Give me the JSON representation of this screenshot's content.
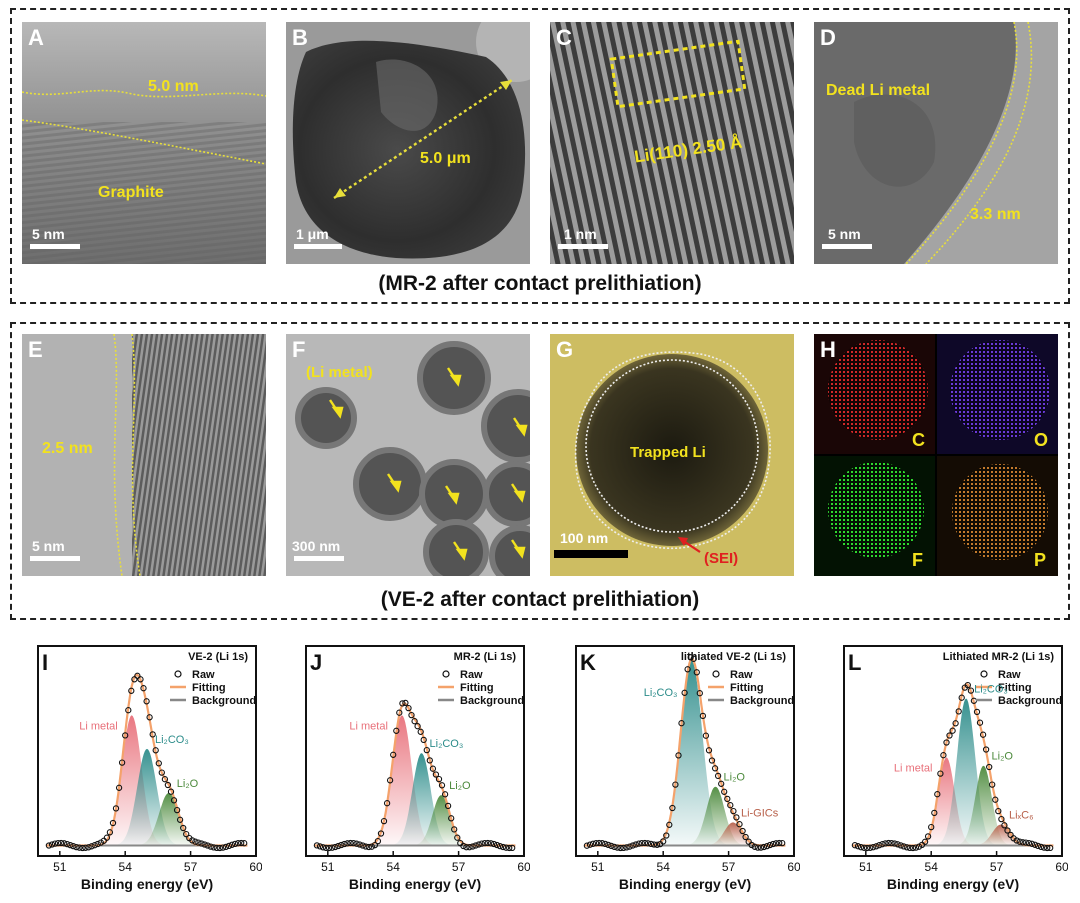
{
  "group_top": {
    "caption": "(MR-2 after contact prelithiation)"
  },
  "group_mid": {
    "caption": "(VE-2 after contact prelithiation)"
  },
  "panels": {
    "A": {
      "label": "A",
      "ann1": "5.0 nm",
      "ann2": "Graphite",
      "scale": "5 nm"
    },
    "B": {
      "label": "B",
      "ann1": "5.0 μm",
      "scale": "1 μm"
    },
    "C": {
      "label": "C",
      "ann1": "Li(110) 2.50 Å",
      "scale": "1 nm"
    },
    "D": {
      "label": "D",
      "ann1": "Dead Li metal",
      "ann2": "3.3 nm",
      "scale": "5 nm"
    },
    "E": {
      "label": "E",
      "ann1": "2.5 nm",
      "scale": "5 nm"
    },
    "F": {
      "label": "F",
      "ann1": "(Li metal)",
      "scale": "300 nm"
    },
    "G": {
      "label": "G",
      "ann1": "Trapped Li",
      "ann2": "(SEI)",
      "scale": "100 nm"
    },
    "H": {
      "label": "H",
      "maps": [
        "C",
        "O",
        "F",
        "P"
      ]
    }
  },
  "colors": {
    "fit": "#f4a26b",
    "li_metal": "#e8707a",
    "li2co3": "#2c8c8a",
    "li2o": "#4c8a3c",
    "lic": "#b8604a",
    "annotation": "#f2e21e"
  },
  "xps_common": {
    "xlabel": "Binding energy (eV)",
    "xticks": [
      "51",
      "54",
      "57",
      "60"
    ],
    "legend": [
      "Raw",
      "Fitting",
      "Background"
    ]
  },
  "chart_data": [
    {
      "type": "line",
      "letter": "I",
      "title": "VE-2 (Li 1s)",
      "xlim": [
        50,
        60
      ],
      "components": [
        {
          "name": "Li metal",
          "center": 54.3,
          "height": 0.62,
          "width": 0.45
        },
        {
          "name": "Li2CO3",
          "center": 55.0,
          "height": 0.46,
          "width": 0.45
        },
        {
          "name": "Li2O",
          "center": 56.0,
          "height": 0.25,
          "width": 0.45
        }
      ],
      "labels": [
        {
          "text": "Li metal",
          "color": "li_metal"
        },
        {
          "text": "Li₂CO₃",
          "color": "li2co3"
        },
        {
          "text": "Li₂O",
          "color": "li2o"
        }
      ]
    },
    {
      "type": "line",
      "letter": "J",
      "title": "MR-2 (Li 1s)",
      "xlim": [
        50,
        60
      ],
      "components": [
        {
          "name": "Li metal",
          "center": 54.4,
          "height": 0.62,
          "width": 0.45
        },
        {
          "name": "Li2CO3",
          "center": 55.3,
          "height": 0.44,
          "width": 0.42
        },
        {
          "name": "Li2O",
          "center": 56.2,
          "height": 0.24,
          "width": 0.4
        }
      ],
      "labels": [
        {
          "text": "Li metal",
          "color": "li_metal"
        },
        {
          "text": "Li₂CO₃",
          "color": "li2co3"
        },
        {
          "text": "Li₂O",
          "color": "li2o"
        }
      ]
    },
    {
      "type": "line",
      "letter": "K",
      "title": "lithiated VE-2 (Li 1s)",
      "xlim": [
        50,
        60
      ],
      "components": [
        {
          "name": "Li2CO3",
          "center": 55.3,
          "height": 0.88,
          "width": 0.5
        },
        {
          "name": "Li2O",
          "center": 56.4,
          "height": 0.28,
          "width": 0.42
        },
        {
          "name": "Li-GICs",
          "center": 57.2,
          "height": 0.11,
          "width": 0.4
        }
      ],
      "labels": [
        {
          "text": "Li₂CO₃",
          "color": "li2co3"
        },
        {
          "text": "Li₂O",
          "color": "li2o"
        },
        {
          "text": "Li-GICs",
          "color": "lic"
        }
      ]
    },
    {
      "type": "line",
      "letter": "L",
      "title": "Lithiated MR-2 (Li 1s)",
      "xlim": [
        50,
        60
      ],
      "components": [
        {
          "name": "Li metal",
          "center": 54.7,
          "height": 0.42,
          "width": 0.38
        },
        {
          "name": "Li2CO3",
          "center": 55.6,
          "height": 0.7,
          "width": 0.42
        },
        {
          "name": "Li2O",
          "center": 56.4,
          "height": 0.38,
          "width": 0.38
        },
        {
          "name": "LixC6",
          "center": 57.2,
          "height": 0.1,
          "width": 0.4
        }
      ],
      "labels": [
        {
          "text": "Li metal",
          "color": "li_metal"
        },
        {
          "text": "Li₂CO₃",
          "color": "li2co3"
        },
        {
          "text": "Li₂O",
          "color": "li2o"
        },
        {
          "text": "LiₓC₆",
          "color": "lic"
        }
      ]
    }
  ]
}
